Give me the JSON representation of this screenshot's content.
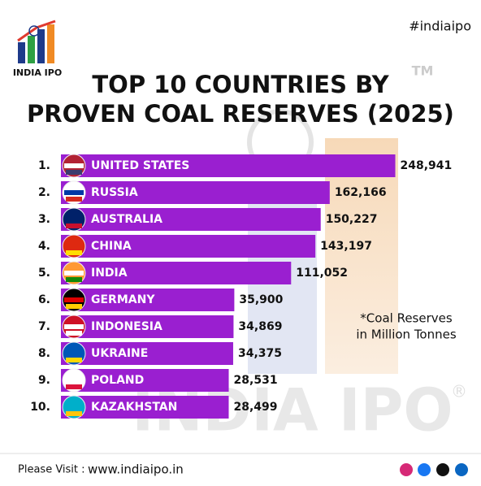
{
  "brand": "INDIA IPO",
  "hashtag": "#indiaipo",
  "trademark": "TM",
  "watermark": "INDIA IPO",
  "registered": "®",
  "chart_data": {
    "type": "bar",
    "orientation": "horizontal",
    "title_lines": [
      "TOP 10 COUNTRIES BY",
      "PROVEN COAL RESERVES (2025)"
    ],
    "ranks": [
      "1.",
      "2.",
      "3.",
      "4.",
      "5.",
      "6.",
      "7.",
      "8.",
      "9.",
      "10."
    ],
    "categories": [
      "UNITED STATES",
      "RUSSIA",
      "AUSTRALIA",
      "CHINA",
      "INDIA",
      "GERMANY",
      "INDONESIA",
      "UKRAINE",
      "POLAND",
      "KAZAKHSTAN"
    ],
    "values": [
      248941,
      162166,
      150227,
      143197,
      111052,
      35900,
      34869,
      34375,
      28531,
      28499
    ],
    "value_labels": [
      "248,941",
      "162,166",
      "150,227",
      "143,197",
      "111,052",
      "35,900",
      "34,869",
      "34,375",
      "28,531",
      "28,499"
    ],
    "color": "#9a1fd0",
    "note_lines": [
      "*Coal Reserves",
      "in Million Tonnes"
    ]
  },
  "footer": {
    "label": "Please Visit :",
    "url": "www.indiaipo.in"
  }
}
